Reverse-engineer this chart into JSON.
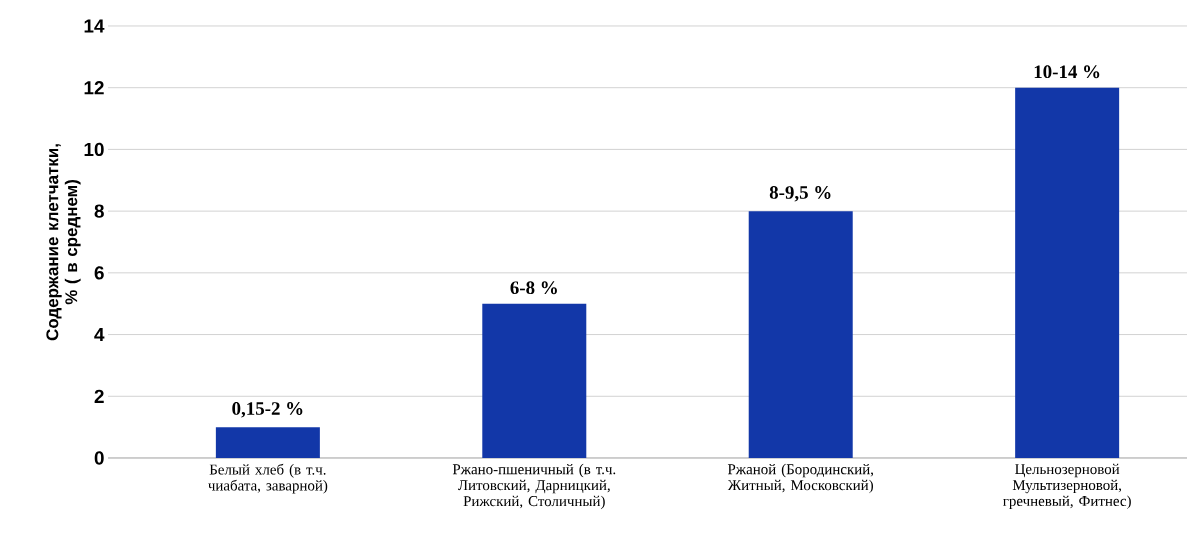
{
  "chart_data": {
    "type": "bar",
    "ylabel": "Содержание клетчатки, % ( в среднем)",
    "categories": [
      "Белый хлеб (в т.ч. чиабата, заварной)",
      "Ржано-пшеничный (в т.ч. Литовский, Дарницкий, Рижский, Столичный)",
      "Ржаной (Бородинский, Житный, Московский)",
      "Цельнозерновой Мультизерновой, гречневый, Фитнес)"
    ],
    "values": [
      1,
      5,
      8,
      12
    ],
    "annotations": [
      {
        "text": "0,15-2 %",
        "x": "Белый хлеб (в т.ч. чиабата, заварной)",
        "y": 1
      },
      {
        "text": "6-8 %",
        "x": "Ржано-пшеничный (в т.ч. Литовский, Дарницкий, Рижский, Столичный)",
        "y": 5
      },
      {
        "text": "8-9,5 %",
        "x": "Ржаной (Бородинский, Житный, Московский)",
        "y": 8
      },
      {
        "text": "10-14 %",
        "x": "Цельнозерновой Мультизерновой, гречневый, Фитнес)",
        "y": 12
      }
    ],
    "color": "#1237a8",
    "ylim": [
      0,
      14
    ],
    "yticks": [
      0,
      2,
      4,
      6,
      8,
      10,
      12,
      14
    ],
    "grid": "y"
  }
}
